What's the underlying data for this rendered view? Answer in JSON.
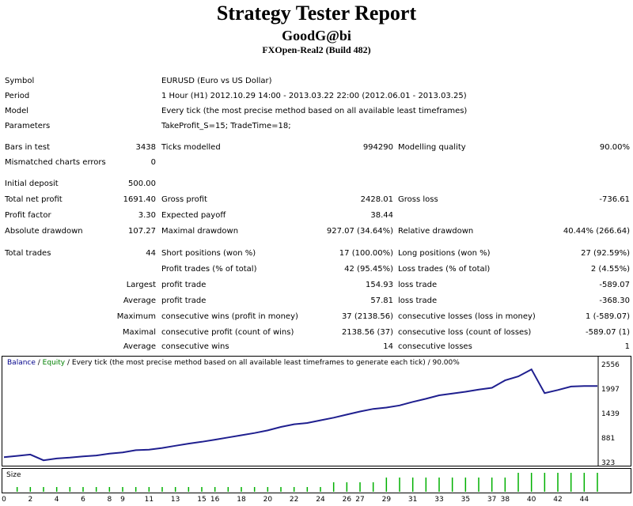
{
  "header": {
    "title": "Strategy Tester Report",
    "account": "GoodG@bi",
    "server": "FXOpen-Real2 (Build 482)"
  },
  "info": {
    "symbol_label": "Symbol",
    "symbol_value": "EURUSD (Euro vs US Dollar)",
    "period_label": "Period",
    "period_value": "1 Hour (H1) 2012.10.29 14:00 - 2013.03.22 22:00 (2012.06.01 - 2013.03.25)",
    "model_label": "Model",
    "model_value": "Every tick (the most precise method based on all available least timeframes)",
    "params_label": "Parameters",
    "params_value": "TakeProfit_S=15; TradeTime=18;"
  },
  "stats": {
    "bars_label": "Bars in test",
    "bars_value": "3438",
    "ticks_label": "Ticks modelled",
    "ticks_value": "994290",
    "quality_label": "Modelling quality",
    "quality_value": "90.00%",
    "mismatch_label": "Mismatched charts errors",
    "mismatch_value": "0",
    "deposit_label": "Initial deposit",
    "deposit_value": "500.00",
    "netprofit_label": "Total net profit",
    "netprofit_value": "1691.40",
    "grossprofit_label": "Gross profit",
    "grossprofit_value": "2428.01",
    "grossloss_label": "Gross loss",
    "grossloss_value": "-736.61",
    "pf_label": "Profit factor",
    "pf_value": "3.30",
    "ep_label": "Expected payoff",
    "ep_value": "38.44",
    "absdd_label": "Absolute drawdown",
    "absdd_value": "107.27",
    "maxdd_label": "Maximal drawdown",
    "maxdd_value": "927.07 (34.64%)",
    "reldd_label": "Relative drawdown",
    "reldd_value": "40.44% (266.64)",
    "trades_label": "Total trades",
    "trades_value": "44",
    "short_label": "Short positions (won %)",
    "short_value": "17 (100.00%)",
    "long_label": "Long positions (won %)",
    "long_value": "27 (92.59%)",
    "pt_label": "Profit trades (% of total)",
    "pt_value": "42 (95.45%)",
    "lt_label": "Loss trades (% of total)",
    "lt_value": "2 (4.55%)",
    "largest_label": "Largest",
    "largest_pt_label": "profit trade",
    "largest_pt_value": "154.93",
    "largest_lt_label": "loss trade",
    "largest_lt_value": "-589.07",
    "average_label": "Average",
    "average_pt_label": "profit trade",
    "average_pt_value": "57.81",
    "average_lt_label": "loss trade",
    "average_lt_value": "-368.30",
    "maximum_label": "Maximum",
    "max_cw_label": "consecutive wins (profit in money)",
    "max_cw_value": "37 (2138.56)",
    "max_cl_label": "consecutive losses (loss in money)",
    "max_cl_value": "1 (-589.07)",
    "maximal_label": "Maximal",
    "maximal_cp_label": "consecutive profit (count of wins)",
    "maximal_cp_value": "2138.56 (37)",
    "maximal_cl_label": "consecutive loss (count of losses)",
    "maximal_cl_value": "-589.07 (1)",
    "avg2_label": "Average",
    "avg_cw_label": "consecutive wins",
    "avg_cw_value": "14",
    "avg_cl_label": "consecutive losses",
    "avg_cl_value": "1"
  },
  "legend": {
    "balance": "Balance",
    "sep": " / ",
    "equity": "Equity",
    "desc": " / Every tick (the most precise method based on all available least timeframes to generate each tick) / 90.00%"
  },
  "size_label": "Size",
  "colors": {
    "balance": "#1f1f8f",
    "size_bar": "#00b000"
  },
  "chart_data": {
    "type": "line",
    "y_ticks": [
      2556,
      1997,
      1439,
      881,
      323
    ],
    "y_range": [
      323,
      2556
    ],
    "x_ticks": [
      0,
      2,
      4,
      6,
      8,
      9,
      11,
      13,
      15,
      16,
      18,
      20,
      22,
      24,
      26,
      27,
      29,
      31,
      33,
      35,
      37,
      38,
      40,
      42,
      44
    ],
    "x_range": [
      0,
      45
    ],
    "series": [
      {
        "x": [
          0,
          1,
          2,
          3,
          4,
          5,
          6,
          7,
          8,
          9,
          10,
          11,
          12,
          13,
          14,
          15,
          16,
          17,
          18,
          19,
          20,
          21,
          22,
          23,
          24,
          25,
          26,
          27,
          28,
          29,
          30,
          31,
          32,
          33,
          34,
          35,
          36,
          37,
          38,
          39,
          40,
          41,
          42,
          43,
          44,
          45
        ],
        "values": [
          480,
          510,
          540,
          410,
          450,
          470,
          500,
          520,
          560,
          590,
          640,
          650,
          690,
          740,
          790,
          830,
          880,
          930,
          980,
          1030,
          1090,
          1170,
          1230,
          1260,
          1320,
          1380,
          1450,
          1520,
          1580,
          1610,
          1660,
          1740,
          1810,
          1890,
          1930,
          1970,
          2020,
          2060,
          2230,
          2320,
          2480,
          1940,
          2010,
          2090,
          2100,
          2100
        ]
      }
    ],
    "size": {
      "x": [
        1,
        2,
        3,
        4,
        5,
        6,
        7,
        8,
        9,
        10,
        11,
        12,
        13,
        14,
        15,
        16,
        17,
        18,
        19,
        20,
        21,
        22,
        23,
        24,
        25,
        26,
        27,
        28,
        29,
        30,
        31,
        32,
        33,
        34,
        35,
        36,
        37,
        38,
        39,
        40,
        41,
        42,
        43,
        44,
        45
      ],
      "values": [
        1,
        1,
        1,
        1,
        1,
        1,
        1,
        1,
        1,
        1,
        1,
        1,
        1,
        1,
        1,
        1,
        1,
        1,
        1,
        1,
        1,
        1,
        1,
        1,
        2,
        2,
        2,
        2,
        3,
        3,
        3,
        3,
        3,
        3,
        3,
        3,
        3,
        3,
        4,
        4,
        4,
        4,
        4,
        4,
        4
      ]
    }
  }
}
